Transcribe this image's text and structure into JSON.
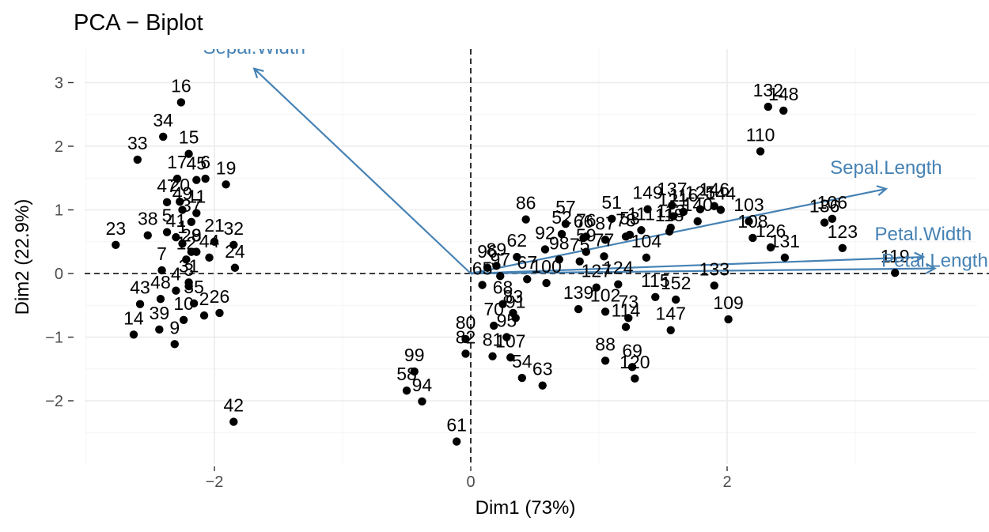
{
  "chart_data": {
    "type": "scatter",
    "title": "PCA − Biplot",
    "xlabel": "Dim1 (73%)",
    "ylabel": "Dim2 (22.9%)",
    "xlim": [
      -3.0,
      3.95
    ],
    "ylim": [
      -3.0,
      3.5
    ],
    "x_ticks": [
      -2,
      0,
      2
    ],
    "x_tick_labels": [
      "−2",
      "0",
      "2"
    ],
    "y_ticks": [
      -2,
      -1,
      0,
      1,
      2,
      3
    ],
    "y_tick_labels": [
      "−2",
      "−1",
      "0",
      "1",
      "2",
      "3"
    ],
    "grid": true,
    "reference_lines": {
      "x": 0,
      "y": 0
    },
    "arrow_color": "#4682b4",
    "point_color": "#000000",
    "points": [
      {
        "label": "16",
        "x": -2.26,
        "y": 2.69
      },
      {
        "label": "34",
        "x": -2.4,
        "y": 2.15
      },
      {
        "label": "33",
        "x": -2.6,
        "y": 1.79
      },
      {
        "label": "15",
        "x": -2.2,
        "y": 1.88
      },
      {
        "label": "17",
        "x": -2.29,
        "y": 1.49
      },
      {
        "label": "6",
        "x": -2.07,
        "y": 1.49
      },
      {
        "label": "19",
        "x": -1.91,
        "y": 1.4
      },
      {
        "label": "47",
        "x": -2.37,
        "y": 1.12
      },
      {
        "label": "20",
        "x": -2.27,
        "y": 1.13
      },
      {
        "label": "45",
        "x": -2.14,
        "y": 1.47
      },
      {
        "label": "49",
        "x": -2.25,
        "y": 1.0
      },
      {
        "label": "23",
        "x": -2.77,
        "y": 0.45
      },
      {
        "label": "38",
        "x": -2.52,
        "y": 0.6
      },
      {
        "label": "5",
        "x": -2.37,
        "y": 0.65
      },
      {
        "label": "11",
        "x": -2.14,
        "y": 0.95
      },
      {
        "label": "37",
        "x": -2.18,
        "y": 0.81
      },
      {
        "label": "41",
        "x": -2.3,
        "y": 0.57
      },
      {
        "label": "21",
        "x": -2.0,
        "y": 0.5
      },
      {
        "label": "32",
        "x": -1.85,
        "y": 0.45
      },
      {
        "label": "24",
        "x": -1.84,
        "y": 0.09
      },
      {
        "label": "7",
        "x": -2.41,
        "y": 0.05
      },
      {
        "label": "12",
        "x": -2.22,
        "y": 0.22
      },
      {
        "label": "8",
        "x": -2.14,
        "y": 0.34
      },
      {
        "label": "44",
        "x": -2.04,
        "y": 0.25
      },
      {
        "label": "29",
        "x": -2.18,
        "y": 0.34
      },
      {
        "label": "1",
        "x": -2.25,
        "y": 0.47
      },
      {
        "label": "43",
        "x": -2.58,
        "y": -0.48
      },
      {
        "label": "48",
        "x": -2.42,
        "y": -0.4
      },
      {
        "label": "4",
        "x": -2.3,
        "y": -0.27
      },
      {
        "label": "3",
        "x": -2.2,
        "y": -0.2
      },
      {
        "label": "31",
        "x": -2.2,
        "y": -0.14
      },
      {
        "label": "35",
        "x": -2.16,
        "y": -0.47
      },
      {
        "label": "26",
        "x": -1.96,
        "y": -0.62
      },
      {
        "label": "2",
        "x": -2.08,
        "y": -0.66
      },
      {
        "label": "10",
        "x": -2.24,
        "y": -0.73
      },
      {
        "label": "14",
        "x": -2.63,
        "y": -0.96
      },
      {
        "label": "39",
        "x": -2.43,
        "y": -0.88
      },
      {
        "label": "9",
        "x": -2.31,
        "y": -1.11
      },
      {
        "label": "42",
        "x": -1.85,
        "y": -2.33
      },
      {
        "label": "86",
        "x": 0.43,
        "y": 0.85
      },
      {
        "label": "57",
        "x": 0.74,
        "y": 0.78
      },
      {
        "label": "52",
        "x": 0.71,
        "y": 0.62
      },
      {
        "label": "76",
        "x": 0.9,
        "y": 0.58
      },
      {
        "label": "66",
        "x": 0.88,
        "y": 0.56
      },
      {
        "label": "87",
        "x": 1.05,
        "y": 0.53
      },
      {
        "label": "51",
        "x": 1.1,
        "y": 0.86
      },
      {
        "label": "53",
        "x": 1.24,
        "y": 0.61
      },
      {
        "label": "149",
        "x": 1.38,
        "y": 1.01
      },
      {
        "label": "137",
        "x": 1.57,
        "y": 1.07
      },
      {
        "label": "125",
        "x": 1.79,
        "y": 1.01
      },
      {
        "label": "146",
        "x": 1.9,
        "y": 1.06
      },
      {
        "label": "144",
        "x": 1.95,
        "y": 1.0
      },
      {
        "label": "116",
        "x": 1.66,
        "y": 0.97
      },
      {
        "label": "121",
        "x": 1.58,
        "y": 0.9
      },
      {
        "label": "140",
        "x": 1.77,
        "y": 0.82
      },
      {
        "label": "113",
        "x": 1.56,
        "y": 0.72
      },
      {
        "label": "103",
        "x": 2.17,
        "y": 0.82
      },
      {
        "label": "108",
        "x": 2.2,
        "y": 0.56
      },
      {
        "label": "126",
        "x": 2.34,
        "y": 0.41
      },
      {
        "label": "131",
        "x": 2.45,
        "y": 0.25
      },
      {
        "label": "136",
        "x": 2.76,
        "y": 0.8
      },
      {
        "label": "106",
        "x": 2.82,
        "y": 0.86
      },
      {
        "label": "123",
        "x": 2.9,
        "y": 0.4
      },
      {
        "label": "119",
        "x": 3.31,
        "y": 0.01
      },
      {
        "label": "132",
        "x": 2.32,
        "y": 2.62
      },
      {
        "label": "148",
        "x": 2.44,
        "y": 2.56
      },
      {
        "label": "110",
        "x": 2.26,
        "y": 1.92
      },
      {
        "label": "118",
        "x": 1.55,
        "y": 0.66
      },
      {
        "label": "111",
        "x": 1.33,
        "y": 0.68
      },
      {
        "label": "78",
        "x": 1.21,
        "y": 0.58
      },
      {
        "label": "59",
        "x": 0.9,
        "y": 0.34
      },
      {
        "label": "92",
        "x": 0.58,
        "y": 0.38
      },
      {
        "label": "62",
        "x": 0.36,
        "y": 0.26
      },
      {
        "label": "77",
        "x": 1.04,
        "y": 0.27
      },
      {
        "label": "104",
        "x": 1.37,
        "y": 0.25
      },
      {
        "label": "98",
        "x": 0.69,
        "y": 0.22
      },
      {
        "label": "75",
        "x": 0.85,
        "y": 0.19
      },
      {
        "label": "89",
        "x": 0.2,
        "y": 0.12
      },
      {
        "label": "96",
        "x": 0.13,
        "y": 0.09
      },
      {
        "label": "97",
        "x": 0.23,
        "y": -0.04
      },
      {
        "label": "65",
        "x": 0.09,
        "y": -0.18
      },
      {
        "label": "67",
        "x": 0.44,
        "y": -0.09
      },
      {
        "label": "100",
        "x": 0.59,
        "y": -0.15
      },
      {
        "label": "124",
        "x": 1.15,
        "y": -0.17
      },
      {
        "label": "115",
        "x": 1.44,
        "y": -0.37
      },
      {
        "label": "152",
        "x": 1.6,
        "y": -0.41
      },
      {
        "label": "127",
        "x": 0.98,
        "y": -0.22
      },
      {
        "label": "139",
        "x": 0.84,
        "y": -0.56
      },
      {
        "label": "133",
        "x": 1.9,
        "y": -0.19
      },
      {
        "label": "109",
        "x": 2.01,
        "y": -0.72
      },
      {
        "label": "147",
        "x": 1.56,
        "y": -0.89
      },
      {
        "label": "114",
        "x": 1.21,
        "y": -0.84
      },
      {
        "label": "73",
        "x": 1.23,
        "y": -0.7
      },
      {
        "label": "102",
        "x": 1.05,
        "y": -0.6
      },
      {
        "label": "88",
        "x": 1.05,
        "y": -1.37
      },
      {
        "label": "69",
        "x": 1.26,
        "y": -1.47
      },
      {
        "label": "120",
        "x": 1.28,
        "y": -1.65
      },
      {
        "label": "68",
        "x": 0.25,
        "y": -0.48
      },
      {
        "label": "83",
        "x": 0.33,
        "y": -0.62
      },
      {
        "label": "80",
        "x": -0.04,
        "y": -1.03
      },
      {
        "label": "70",
        "x": 0.18,
        "y": -0.82
      },
      {
        "label": "91",
        "x": 0.35,
        "y": -0.7
      },
      {
        "label": "95",
        "x": 0.28,
        "y": -1.0
      },
      {
        "label": "82",
        "x": -0.04,
        "y": -1.26
      },
      {
        "label": "81",
        "x": 0.17,
        "y": -1.3
      },
      {
        "label": "107",
        "x": 0.31,
        "y": -1.32
      },
      {
        "label": "54",
        "x": 0.4,
        "y": -1.64
      },
      {
        "label": "63",
        "x": 0.56,
        "y": -1.76
      },
      {
        "label": "99",
        "x": -0.44,
        "y": -1.54
      },
      {
        "label": "58",
        "x": -0.5,
        "y": -1.84
      },
      {
        "label": "94",
        "x": -0.38,
        "y": -2.01
      },
      {
        "label": "61",
        "x": -0.11,
        "y": -2.64
      }
    ],
    "variables": [
      {
        "name": "Sepal.Width",
        "x": -1.69,
        "y": 3.22
      },
      {
        "name": "Sepal.Length",
        "x": 3.24,
        "y": 1.33
      },
      {
        "name": "Petal.Width",
        "x": 3.53,
        "y": 0.26
      },
      {
        "name": "Petal.Length",
        "x": 3.62,
        "y": 0.08
      }
    ]
  }
}
